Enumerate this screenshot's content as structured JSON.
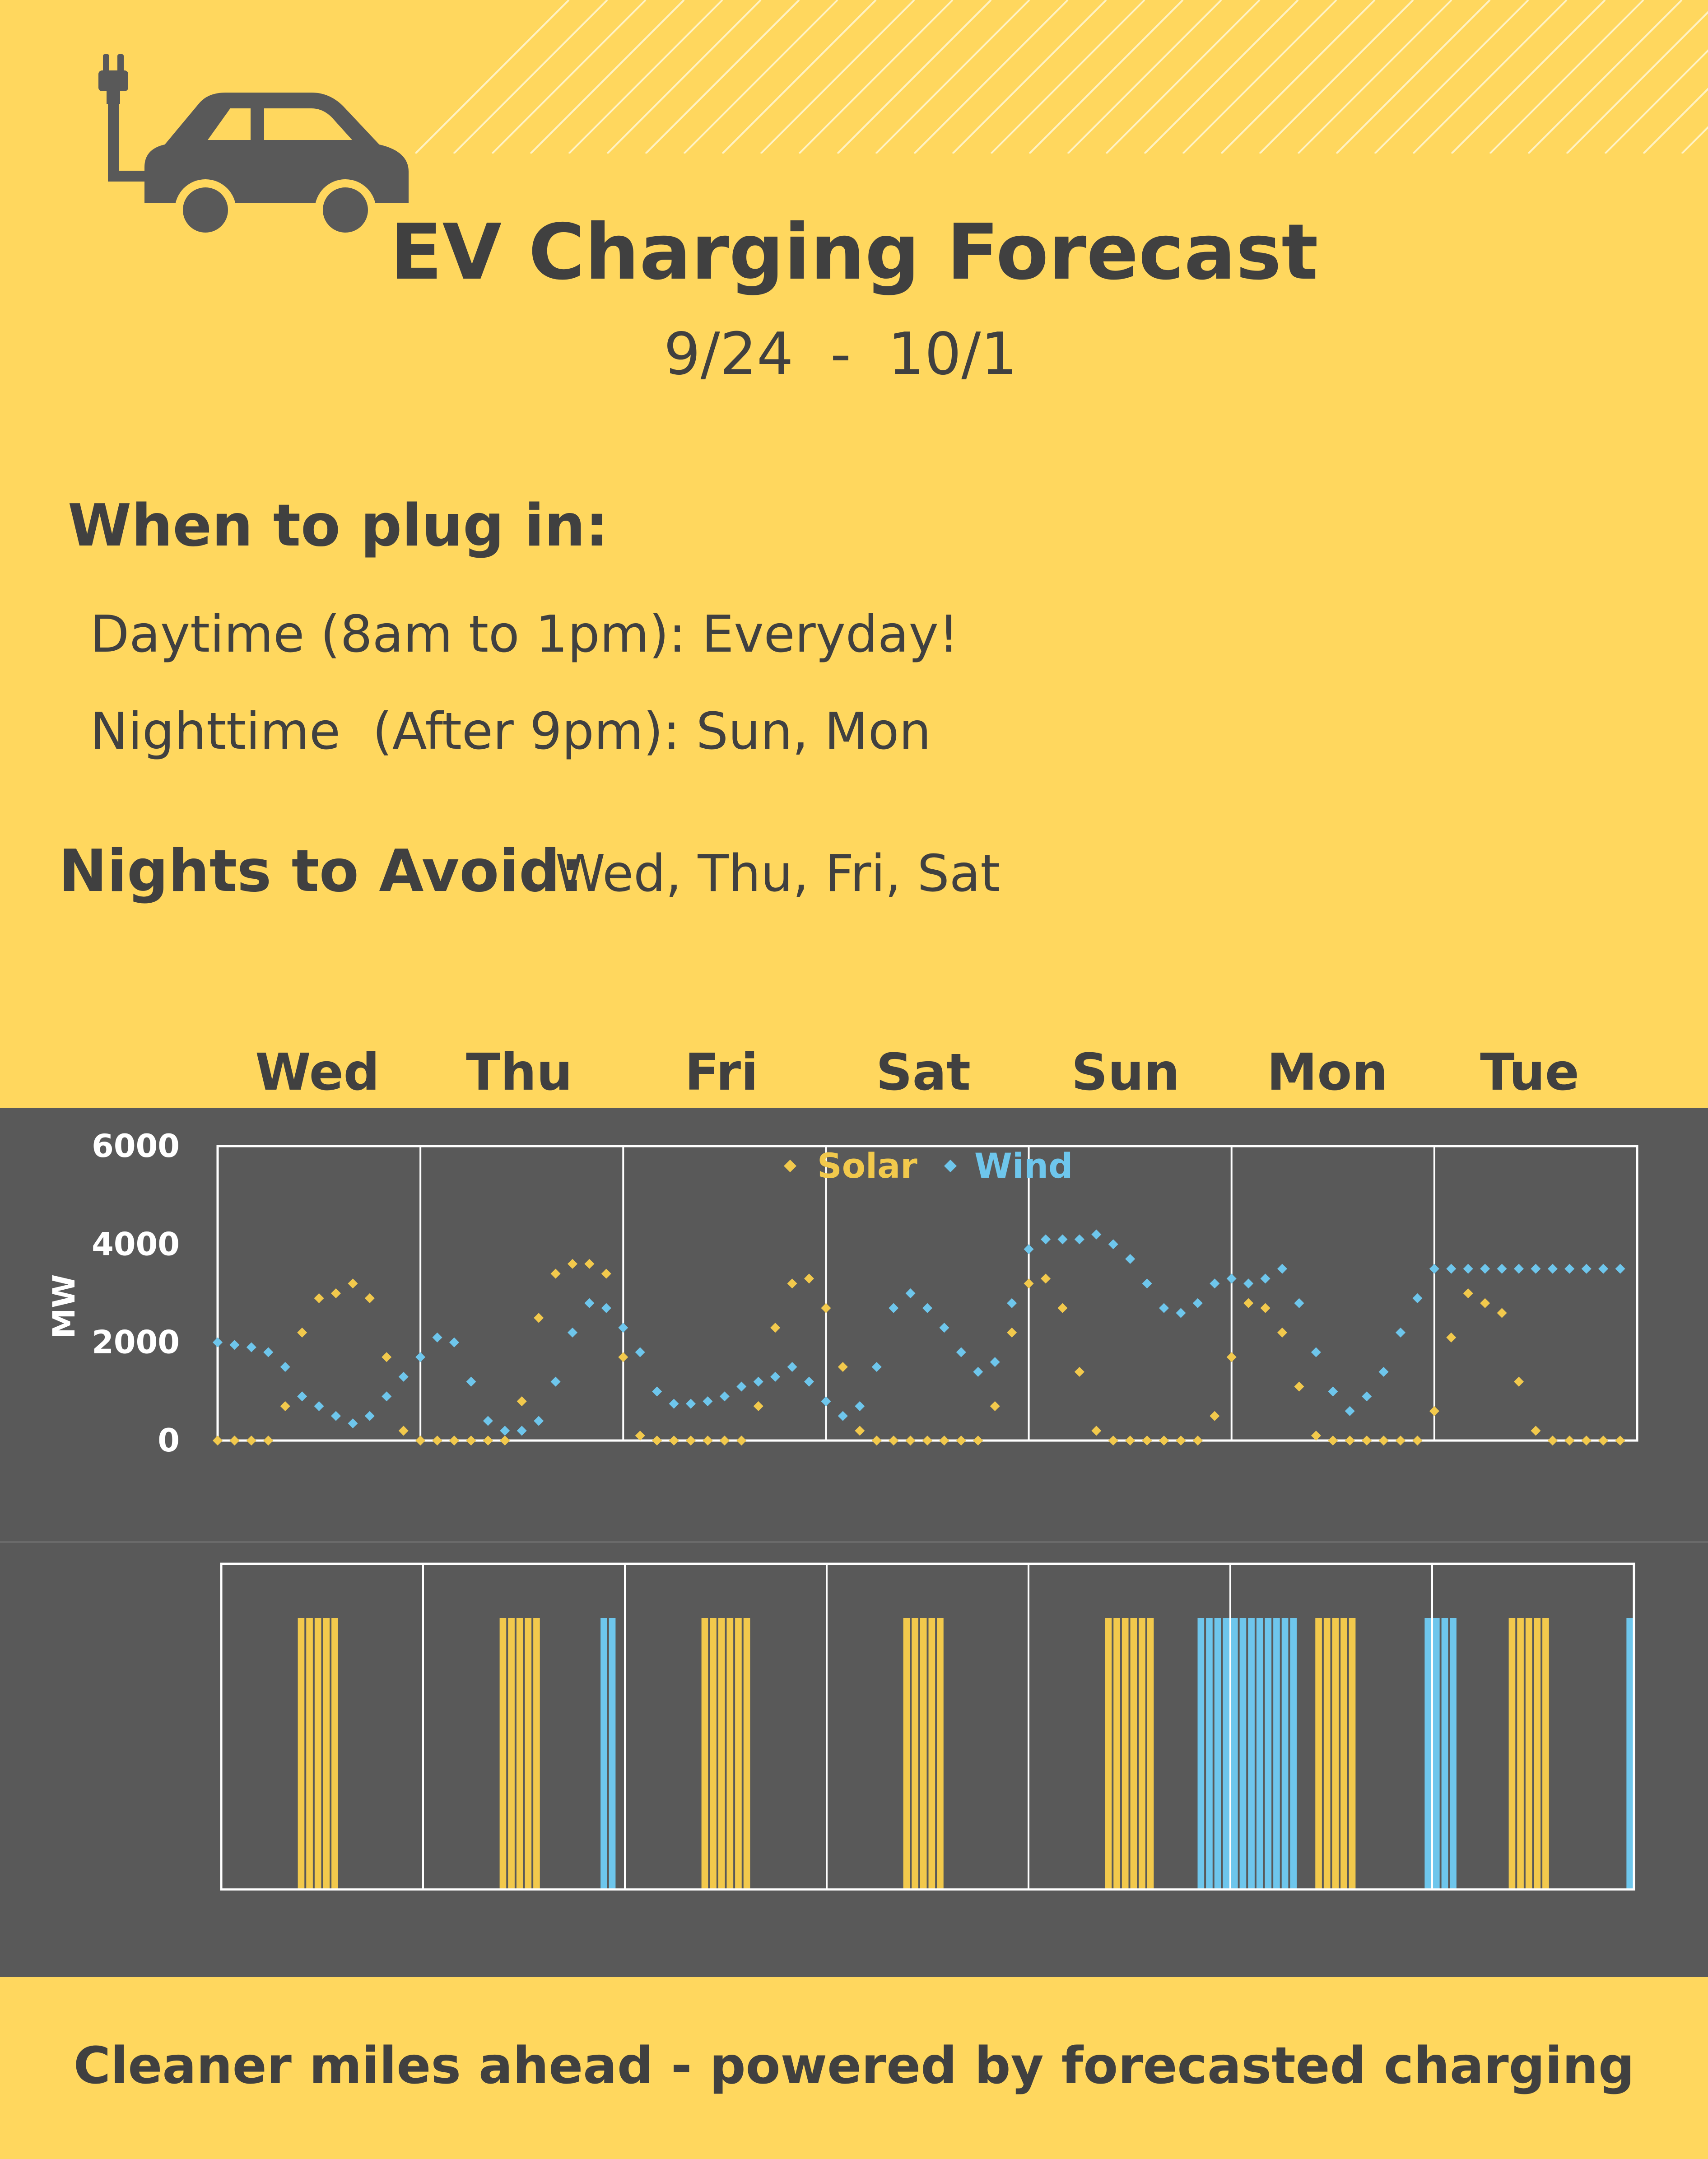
{
  "header": {
    "title": "EV Charging Forecast",
    "date_start": "9/24",
    "date_separator": "-",
    "date_end": "10/1"
  },
  "plug_in": {
    "heading": "When to plug in:",
    "daytime": "Daytime (8am to 1pm): Everyday!",
    "nighttime": "Nighttime  (After 9pm): Sun, Mon"
  },
  "avoid": {
    "heading": "Nights to Avoid:",
    "days": "Wed, Thu, Fri, Sat"
  },
  "footer": {
    "tagline": "Cleaner miles ahead - powered by forecasted charging"
  },
  "colors": {
    "background": "#FFD75E",
    "panel": "#595959",
    "text": "#404040",
    "solar": "#F2C94C",
    "wind": "#6EC6EC",
    "grid": "#FFFFFF"
  },
  "icons": {
    "car": "ev-car-with-plug-icon"
  },
  "chart_data": [
    {
      "type": "scatter",
      "x_categories": [
        "Wed",
        "Thu",
        "Fri",
        "Sat",
        "Sun",
        "Mon",
        "Tue"
      ],
      "ylabel": "MW",
      "ylim": [
        0,
        6000
      ],
      "yticks": [
        0,
        2000,
        4000,
        6000
      ],
      "grid": true,
      "legend_position": "top-center",
      "x_unit": "hours from start of Wed",
      "series": [
        {
          "name": "Solar",
          "color": "#F2C94C",
          "marker": "diamond",
          "x": [
            0,
            2,
            4,
            6,
            8,
            10,
            12,
            14,
            16,
            18,
            20,
            22,
            24,
            26,
            28,
            30,
            32,
            34,
            36,
            38,
            40,
            42,
            44,
            46,
            48,
            50,
            52,
            54,
            56,
            58,
            60,
            62,
            64,
            66,
            68,
            70,
            72,
            74,
            76,
            78,
            80,
            82,
            84,
            86,
            88,
            90,
            92,
            94,
            96,
            98,
            100,
            102,
            104,
            106,
            108,
            110,
            112,
            114,
            116,
            118,
            120,
            122,
            124,
            126,
            128,
            130,
            132,
            134,
            136,
            138,
            140,
            142,
            144,
            146,
            148,
            150,
            152,
            154,
            156,
            158,
            160,
            162,
            164,
            166
          ],
          "y": [
            0,
            0,
            0,
            0,
            700,
            2200,
            2900,
            3000,
            3200,
            2900,
            1700,
            200,
            0,
            0,
            0,
            0,
            0,
            0,
            800,
            2500,
            3400,
            3600,
            3600,
            3400,
            1700,
            100,
            0,
            0,
            0,
            0,
            0,
            0,
            700,
            2300,
            3200,
            3300,
            2700,
            1500,
            200,
            0,
            0,
            0,
            0,
            0,
            0,
            0,
            700,
            2200,
            3200,
            3300,
            2700,
            1400,
            200,
            0,
            0,
            0,
            0,
            0,
            0,
            500,
            1700,
            2800,
            2700,
            2200,
            1100,
            100,
            0,
            0,
            0,
            0,
            0,
            0,
            600,
            2100,
            3000,
            2800,
            2600,
            1200,
            200,
            0,
            0,
            0,
            0,
            0
          ]
        },
        {
          "name": "Wind",
          "color": "#6EC6EC",
          "marker": "diamond",
          "x": [
            0,
            2,
            4,
            6,
            8,
            10,
            12,
            14,
            16,
            18,
            20,
            22,
            24,
            26,
            28,
            30,
            32,
            34,
            36,
            38,
            40,
            42,
            44,
            46,
            48,
            50,
            52,
            54,
            56,
            58,
            60,
            62,
            64,
            66,
            68,
            70,
            72,
            74,
            76,
            78,
            80,
            82,
            84,
            86,
            88,
            90,
            92,
            94,
            96,
            98,
            100,
            102,
            104,
            106,
            108,
            110,
            112,
            114,
            116,
            118,
            120,
            122,
            124,
            126,
            128,
            130,
            132,
            134,
            136,
            138,
            140,
            142,
            144,
            146,
            148,
            150,
            152,
            154,
            156,
            158,
            160,
            162,
            164,
            166
          ],
          "y": [
            2000,
            1950,
            1900,
            1800,
            1500,
            900,
            700,
            500,
            350,
            500,
            900,
            1300,
            1700,
            2100,
            2000,
            1200,
            400,
            200,
            200,
            400,
            1200,
            2200,
            2800,
            2700,
            2300,
            1800,
            1000,
            750,
            750,
            800,
            900,
            1100,
            1200,
            1300,
            1500,
            1200,
            800,
            500,
            700,
            1500,
            2700,
            3000,
            2700,
            2300,
            1800,
            1400,
            1600,
            2800,
            3900,
            4100,
            4100,
            4100,
            4200,
            4000,
            3700,
            3200,
            2700,
            2600,
            2800,
            3200,
            3300,
            3200,
            3300,
            3500,
            2800,
            1800,
            1000,
            600,
            900,
            1400,
            2200,
            2900,
            3500,
            3500,
            3500,
            3500,
            3500,
            3500,
            3500,
            3500,
            3500,
            3500,
            3500,
            3500
          ]
        }
      ]
    },
    {
      "type": "bar",
      "x_categories": [
        "Wed",
        "Thu",
        "Fri",
        "Sat",
        "Sun",
        "Mon",
        "Tue"
      ],
      "x_unit": "hours from start of Wed",
      "series": [
        {
          "name": "Solar",
          "color": "#F2C94C",
          "x": [
            9,
            10,
            11,
            12,
            13,
            33,
            34,
            35,
            36,
            37,
            57,
            58,
            59,
            60,
            61,
            62,
            81,
            82,
            83,
            84,
            85,
            105,
            106,
            107,
            108,
            109,
            110,
            130,
            131,
            132,
            133,
            134,
            153,
            154,
            155,
            156,
            157
          ]
        },
        {
          "name": "Wind",
          "color": "#6EC6EC",
          "x": [
            45,
            46,
            116,
            117,
            118,
            119,
            120,
            121,
            122,
            123,
            124,
            125,
            126,
            127,
            143,
            144,
            145,
            146,
            167
          ]
        }
      ]
    }
  ]
}
